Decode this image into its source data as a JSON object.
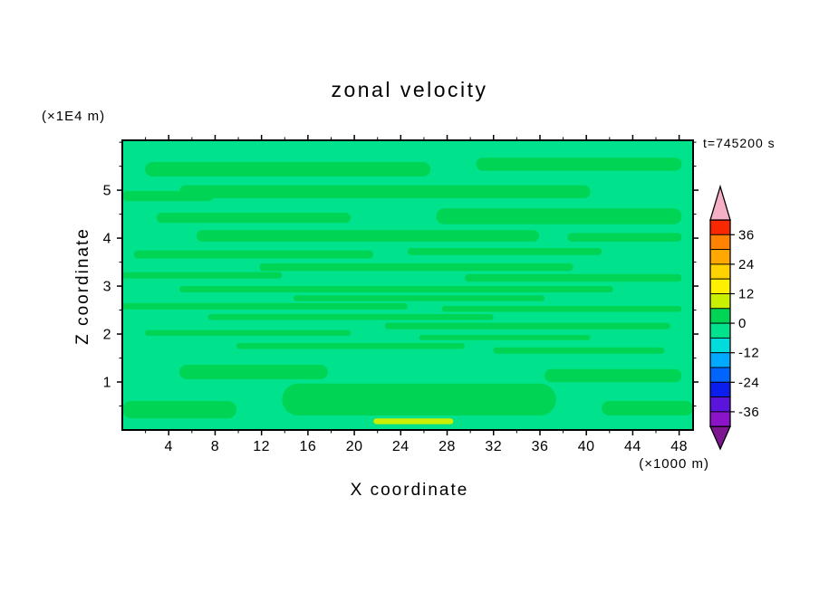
{
  "title": "zonal velocity",
  "time_label": "t=745200 s",
  "y_unit_label": "(×1E4 m)",
  "x_unit_label": "(×1000 m)",
  "chart_data": {
    "type": "filled_contour",
    "title": "zonal velocity",
    "xlabel": "X coordinate",
    "ylabel": "Z coordinate",
    "x_ticks": [
      4,
      8,
      12,
      16,
      20,
      24,
      28,
      32,
      36,
      40,
      44,
      48
    ],
    "y_ticks": [
      1,
      2,
      3,
      4,
      5
    ],
    "x_range": [
      0,
      49.2
    ],
    "y_range": [
      0,
      6.04
    ],
    "x_minor_step": 2,
    "y_minor_step": 0.5,
    "contour_interval": 6,
    "time": "t=745200 s",
    "colorbar": {
      "labels": [
        "36",
        "24",
        "12",
        "0",
        "-12",
        "-24",
        "-36"
      ],
      "over_color": "#f5b0c5",
      "under_color": "#7d1691",
      "bands": [
        {
          "min": 36,
          "max": 42,
          "color": "#fa2800"
        },
        {
          "min": 30,
          "max": 36,
          "color": "#ff8200"
        },
        {
          "min": 24,
          "max": 30,
          "color": "#ffa800"
        },
        {
          "min": 18,
          "max": 24,
          "color": "#ffd200"
        },
        {
          "min": 12,
          "max": 18,
          "color": "#fff000"
        },
        {
          "min": 6,
          "max": 12,
          "color": "#c8f000"
        },
        {
          "min": 0,
          "max": 6,
          "color": "#00d455"
        },
        {
          "min": -6,
          "max": 0,
          "color": "#00e28c"
        },
        {
          "min": -12,
          "max": -6,
          "color": "#00dcdc"
        },
        {
          "min": -18,
          "max": -12,
          "color": "#00aaff"
        },
        {
          "min": -24,
          "max": -18,
          "color": "#0064ff"
        },
        {
          "min": -30,
          "max": -24,
          "color": "#0a1eee"
        },
        {
          "min": -36,
          "max": -30,
          "color": "#5a14dc"
        },
        {
          "min": -42,
          "max": -36,
          "color": "#8c14c8"
        }
      ]
    },
    "field": {
      "background_value": -6,
      "streaks": [
        {
          "x": 0.04,
          "y": 0.075,
          "w": 0.5,
          "h": 0.05,
          "v": 0
        },
        {
          "x": 0.62,
          "y": 0.06,
          "w": 0.36,
          "h": 0.045,
          "v": 0
        },
        {
          "x": 0.1,
          "y": 0.155,
          "w": 0.72,
          "h": 0.045,
          "v": 0
        },
        {
          "x": 0.0,
          "y": 0.175,
          "w": 0.16,
          "h": 0.035,
          "v": 0
        },
        {
          "x": 0.55,
          "y": 0.235,
          "w": 0.43,
          "h": 0.055,
          "v": 0
        },
        {
          "x": 0.06,
          "y": 0.25,
          "w": 0.34,
          "h": 0.035,
          "v": 0
        },
        {
          "x": 0.13,
          "y": 0.31,
          "w": 0.6,
          "h": 0.04,
          "v": 0
        },
        {
          "x": 0.78,
          "y": 0.32,
          "w": 0.2,
          "h": 0.03,
          "v": 0
        },
        {
          "x": 0.02,
          "y": 0.38,
          "w": 0.42,
          "h": 0.028,
          "v": 0
        },
        {
          "x": 0.5,
          "y": 0.372,
          "w": 0.34,
          "h": 0.024,
          "v": 0
        },
        {
          "x": 0.24,
          "y": 0.425,
          "w": 0.55,
          "h": 0.026,
          "v": 0
        },
        {
          "x": 0.0,
          "y": 0.455,
          "w": 0.28,
          "h": 0.022,
          "v": 0
        },
        {
          "x": 0.6,
          "y": 0.462,
          "w": 0.38,
          "h": 0.026,
          "v": 0
        },
        {
          "x": 0.1,
          "y": 0.503,
          "w": 0.76,
          "h": 0.022,
          "v": 0
        },
        {
          "x": 0.3,
          "y": 0.535,
          "w": 0.44,
          "h": 0.02,
          "v": 0
        },
        {
          "x": 0.0,
          "y": 0.562,
          "w": 0.5,
          "h": 0.022,
          "v": 0
        },
        {
          "x": 0.56,
          "y": 0.572,
          "w": 0.42,
          "h": 0.02,
          "v": 0
        },
        {
          "x": 0.15,
          "y": 0.6,
          "w": 0.5,
          "h": 0.02,
          "v": 0
        },
        {
          "x": 0.46,
          "y": 0.63,
          "w": 0.5,
          "h": 0.022,
          "v": 0
        },
        {
          "x": 0.04,
          "y": 0.655,
          "w": 0.36,
          "h": 0.02,
          "v": 0
        },
        {
          "x": 0.52,
          "y": 0.672,
          "w": 0.3,
          "h": 0.018,
          "v": 0
        },
        {
          "x": 0.2,
          "y": 0.7,
          "w": 0.4,
          "h": 0.02,
          "v": 0
        },
        {
          "x": 0.65,
          "y": 0.715,
          "w": 0.3,
          "h": 0.022,
          "v": 0
        },
        {
          "x": 0.1,
          "y": 0.775,
          "w": 0.26,
          "h": 0.05,
          "v": 0
        },
        {
          "x": 0.74,
          "y": 0.79,
          "w": 0.24,
          "h": 0.045,
          "v": 0
        },
        {
          "x": 0.28,
          "y": 0.84,
          "w": 0.48,
          "h": 0.11,
          "v": 0
        },
        {
          "x": 0.0,
          "y": 0.9,
          "w": 0.2,
          "h": 0.06,
          "v": 0
        },
        {
          "x": 0.84,
          "y": 0.9,
          "w": 0.16,
          "h": 0.05,
          "v": 0
        },
        {
          "x": 0.44,
          "y": 0.96,
          "w": 0.14,
          "h": 0.02,
          "v": 6
        }
      ]
    }
  }
}
